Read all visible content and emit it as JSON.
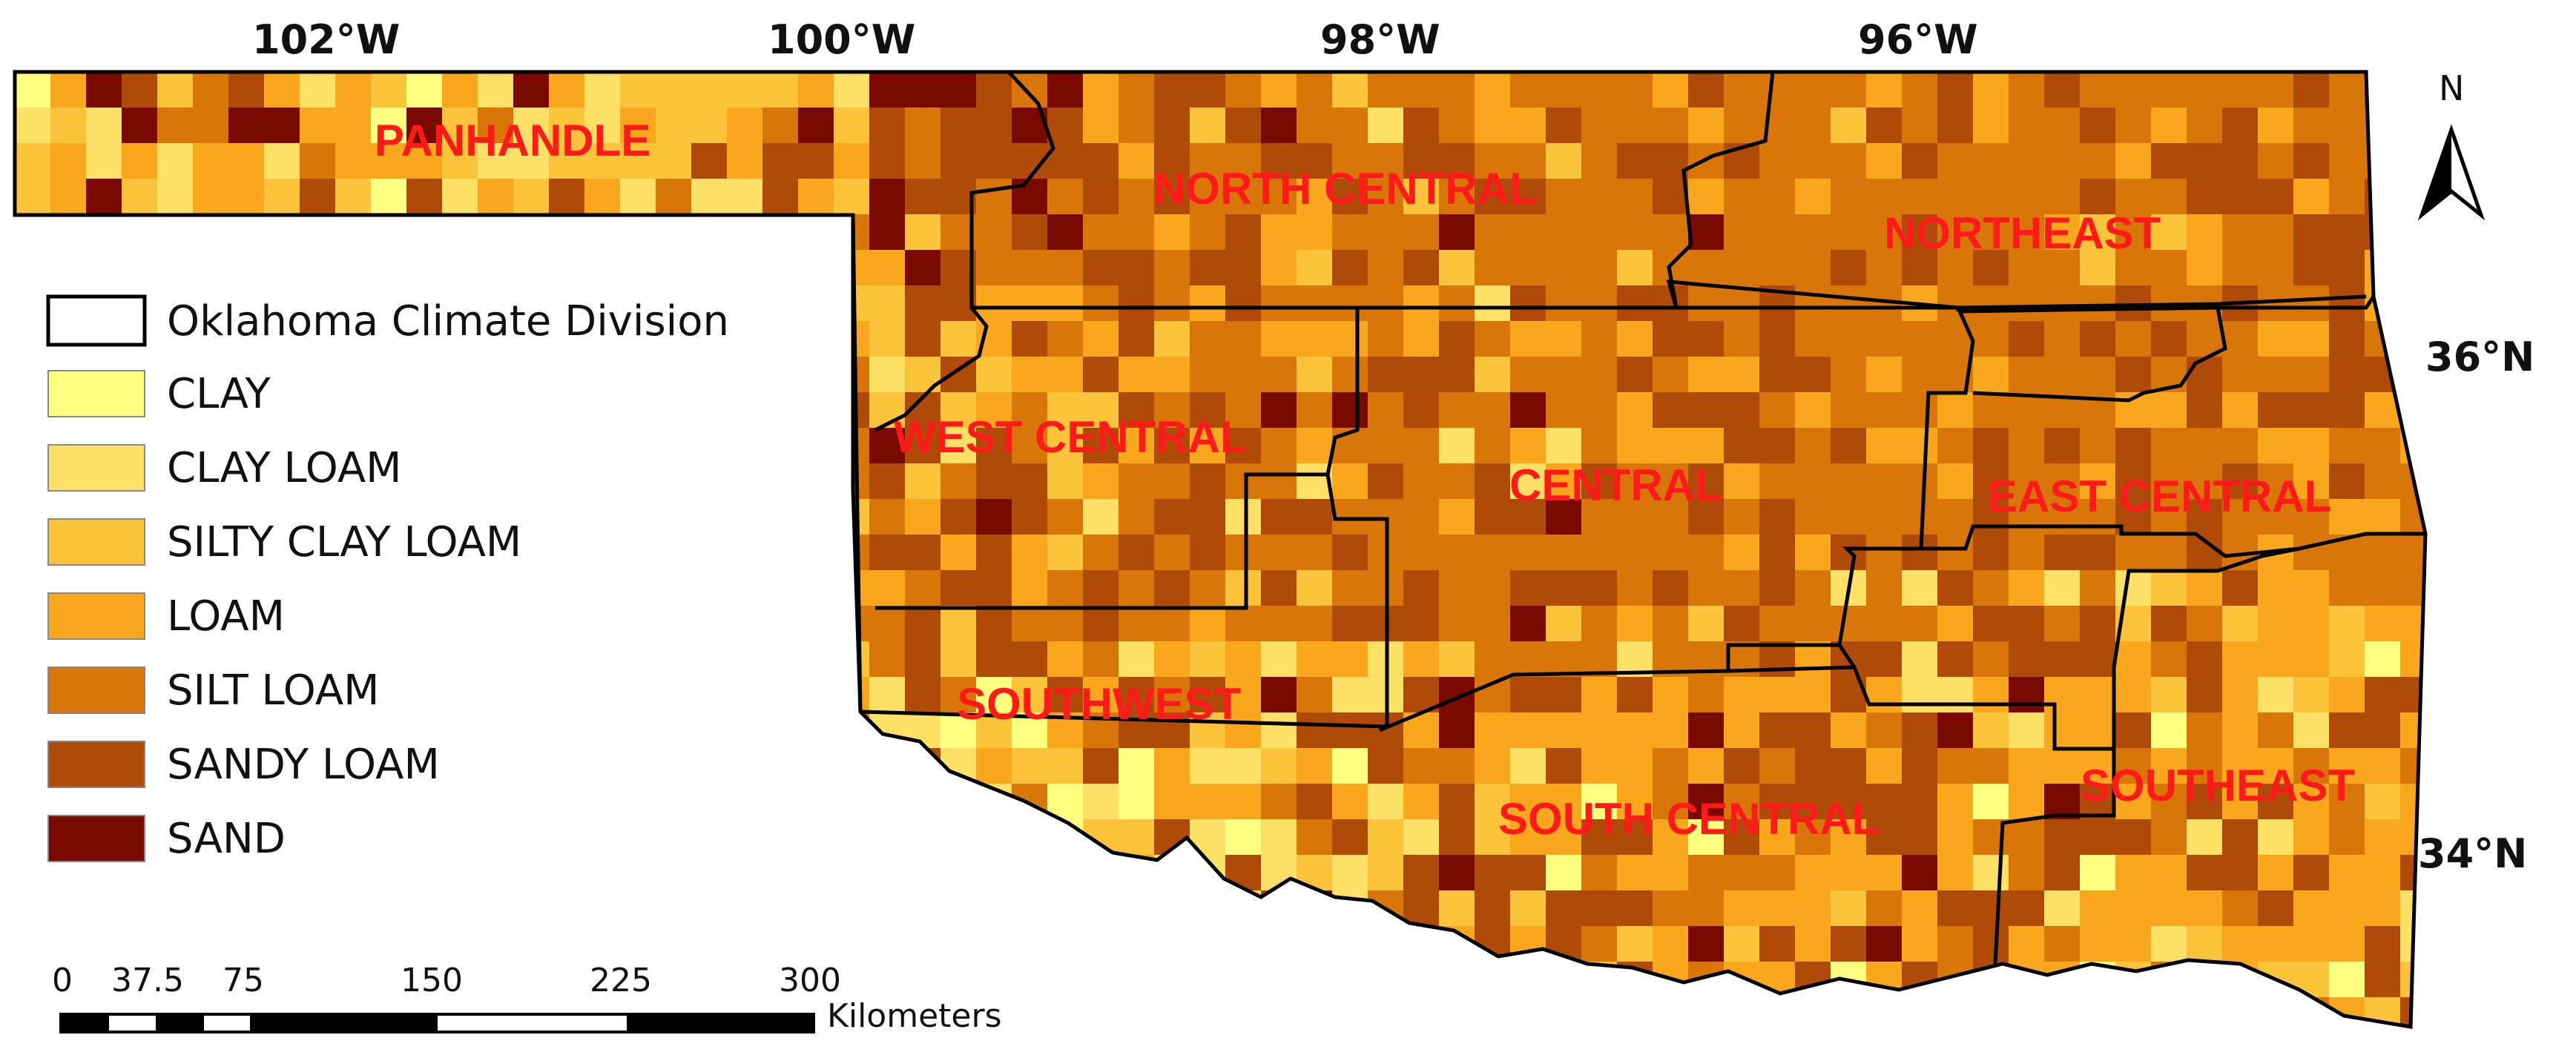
{
  "graticule": {
    "longitudes": [
      "102°W",
      "100°W",
      "98°W",
      "96°W"
    ],
    "latitudes": [
      "36°N",
      "34°N"
    ]
  },
  "divisions": [
    "PANHANDLE",
    "NORTH CENTRAL",
    "NORTHEAST",
    "WEST CENTRAL",
    "CENTRAL",
    "EAST CENTRAL",
    "SOUTHWEST",
    "SOUTH CENTRAL",
    "SOUTHEAST"
  ],
  "legend": {
    "boundary_label": "Oklahoma Climate Division",
    "classes": [
      {
        "label": "CLAY",
        "color": "#ffff80"
      },
      {
        "label": "CLAY LOAM",
        "color": "#ffe066"
      },
      {
        "label": "SILTY CLAY LOAM",
        "color": "#fdc33a"
      },
      {
        "label": "LOAM",
        "color": "#f9a81e"
      },
      {
        "label": "SILT LOAM",
        "color": "#d97609"
      },
      {
        "label": "SANDY LOAM",
        "color": "#b04a08"
      },
      {
        "label": "SAND",
        "color": "#7a0a00"
      }
    ]
  },
  "scale_bar": {
    "ticks": [
      "0",
      "37.5",
      "75",
      "150",
      "225",
      "300"
    ],
    "unit": "Kilometers"
  },
  "north_arrow": {
    "label": "N"
  }
}
